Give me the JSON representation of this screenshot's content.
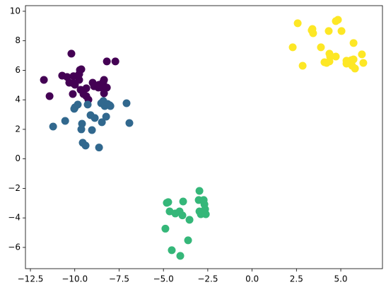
{
  "chart_data": {
    "type": "scatter",
    "xlim": [
      -12.78,
      7.35
    ],
    "ylim": [
      -7.44,
      10.38
    ],
    "xticks": [
      {
        "value": -12.5,
        "label": "−12.5"
      },
      {
        "value": -10,
        "label": "−10.0"
      },
      {
        "value": -7.5,
        "label": "−7.5"
      },
      {
        "value": -5,
        "label": "−5.0"
      },
      {
        "value": -2.5,
        "label": "−2.5"
      },
      {
        "value": 0,
        "label": "0.0"
      },
      2.5,
      {
        "value": 5,
        "label": "5.0"
      }
    ],
    "yticks": [
      {
        "value": -6,
        "label": "−6"
      },
      {
        "value": -4,
        "label": "−4"
      },
      {
        "value": -2,
        "label": "−2"
      },
      0,
      2,
      4,
      6,
      8,
      10
    ],
    "series": [
      {
        "color": "#440154",
        "x": [
          -11.74,
          -11.42,
          -10.19,
          -10.71,
          -10.43,
          -10.07,
          -10.31,
          -10.07,
          -9.75,
          -9.99,
          -9.75,
          -9.63,
          -9.71,
          -9.35,
          -8.99,
          -8.91,
          -8.67,
          -8.47,
          -8.63,
          -8.39,
          -8.19,
          -7.71,
          -8.35,
          -8.19,
          -8.35,
          -9.35,
          -9.51,
          -10.11,
          -9.67,
          -9.23
        ],
        "values": [
          5.35,
          4.25,
          7.13,
          5.64,
          5.55,
          5.6,
          5.16,
          5.11,
          5.35,
          5.02,
          5.74,
          6.07,
          6.02,
          4.78,
          5.16,
          4.92,
          4.83,
          4.83,
          5.02,
          5.21,
          6.6,
          6.6,
          5.35,
          4.83,
          4.44,
          4.25,
          4.39,
          4.39,
          4.68,
          4.01
        ]
      },
      {
        "color": "#31688e",
        "x": [
          -11.22,
          -10.54,
          -9.99,
          -10.03,
          -9.83,
          -9.59,
          -9.63,
          -9.55,
          -9.39,
          -9.11,
          -9.03,
          -8.87,
          -8.63,
          -8.51,
          -8.47,
          -8.39,
          -8.31,
          -8.23,
          -8.15,
          -8.03,
          -7.99,
          -7.08,
          -6.92,
          -9.27
        ],
        "values": [
          2.19,
          2.57,
          3.49,
          3.39,
          3.68,
          2.38,
          2.0,
          1.09,
          0.9,
          2.96,
          1.95,
          2.77,
          0.77,
          3.77,
          2.48,
          3.92,
          3.58,
          2.86,
          3.72,
          3.63,
          3.58,
          3.77,
          2.43,
          3.68
        ]
      },
      {
        "color": "#35b779",
        "x": [
          -2.97,
          -4.81,
          -4.73,
          -4.65,
          -4.33,
          -4.09,
          -3.89,
          -3.93,
          -3.01,
          -2.97,
          -2.69,
          -2.65,
          -2.89,
          -2.61,
          -3.53,
          -3.61,
          -4.53,
          -4.05,
          -4.89,
          -2.73
        ],
        "values": [
          -2.17,
          -2.98,
          -2.93,
          -3.56,
          -3.7,
          -3.56,
          -2.89,
          -3.83,
          -2.79,
          -3.56,
          -3.08,
          -3.41,
          -3.75,
          -3.75,
          -4.13,
          -5.52,
          -6.19,
          -6.57,
          -4.73,
          -2.79
        ]
      },
      {
        "color": "#fde725",
        "x": [
          2.29,
          2.57,
          3.4,
          3.44,
          3.36,
          4.32,
          4.84,
          4.72,
          5.04,
          3.88,
          4.36,
          4.72,
          4.4,
          5.72,
          6.19,
          4.08,
          4.2,
          4.36,
          5.32,
          5.72,
          5.6,
          6.27,
          5.32,
          5.64,
          5.8,
          2.85
        ],
        "values": [
          7.56,
          9.19,
          8.8,
          8.51,
          8.71,
          8.66,
          9.42,
          9.33,
          8.66,
          7.56,
          7.13,
          6.93,
          6.93,
          7.85,
          7.08,
          6.55,
          6.5,
          6.6,
          6.65,
          6.74,
          6.69,
          6.5,
          6.45,
          6.31,
          6.12,
          6.31
        ]
      }
    ]
  }
}
